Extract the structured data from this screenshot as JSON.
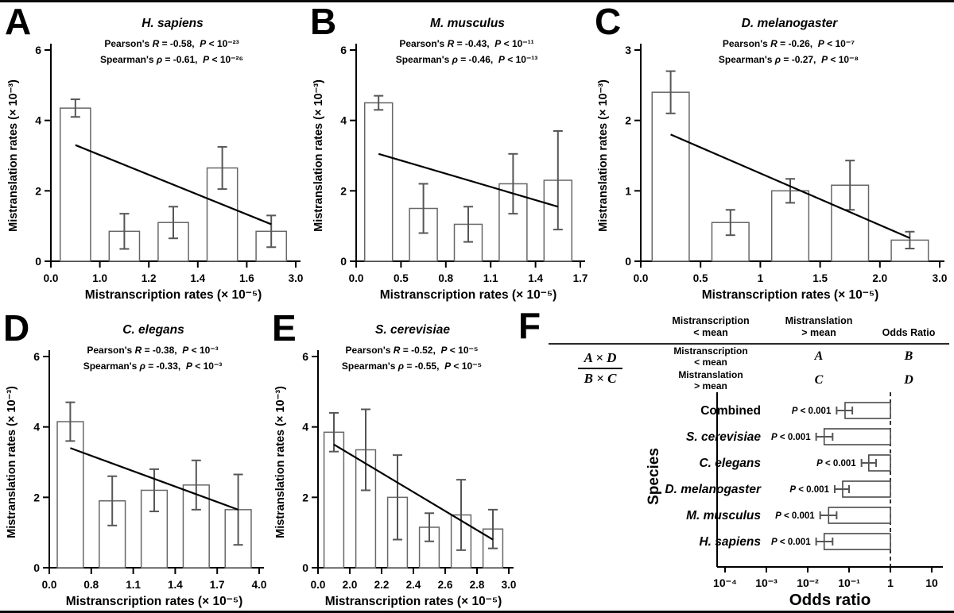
{
  "chart_data": [
    {
      "id": "A",
      "type": "bar",
      "title": "H. sapiens",
      "xlabel": "Mistranscription rates (× 10⁻⁵)",
      "ylabel": "Mistranslation rates (× 10⁻³)",
      "x_tick_labels": [
        "0.0",
        "1.0",
        "1.2",
        "1.4",
        "1.6",
        "3.0"
      ],
      "y_tick_labels": [
        "0",
        "2",
        "4",
        "6"
      ],
      "ylim": [
        0,
        6
      ],
      "values": [
        4.35,
        0.85,
        1.1,
        2.65,
        0.85
      ],
      "errors": [
        0.25,
        0.5,
        0.45,
        0.6,
        0.45
      ],
      "trendline_y": [
        3.3,
        1.05
      ],
      "stats": {
        "pearson_prefix": "Pearson's",
        "pearson_sym": "R",
        "pearson_val": "-0.58",
        "p_sym": "P",
        "pearson_p": "10⁻²³",
        "spearman_prefix": "Spearman's",
        "spearman_sym": "ρ",
        "spearman_val": "-0.61",
        "spearman_p": "10⁻²⁶"
      }
    },
    {
      "id": "B",
      "type": "bar",
      "title": "M. musculus",
      "xlabel": "Mistranscription rates (× 10⁻⁵)",
      "ylabel": "Mistranslation rates (× 10⁻³)",
      "x_tick_labels": [
        "0.0",
        "0.5",
        "0.8",
        "1.1",
        "1.4",
        "1.7"
      ],
      "y_tick_labels": [
        "0",
        "2",
        "4",
        "6"
      ],
      "ylim": [
        0,
        6
      ],
      "values": [
        4.5,
        1.5,
        1.05,
        2.2,
        2.3
      ],
      "errors": [
        0.2,
        0.7,
        0.5,
        0.85,
        1.4
      ],
      "trendline_y": [
        3.05,
        1.55
      ],
      "stats": {
        "pearson_prefix": "Pearson's",
        "pearson_sym": "R",
        "pearson_val": "-0.43",
        "p_sym": "P",
        "pearson_p": "10⁻¹¹",
        "spearman_prefix": "Spearman's",
        "spearman_sym": "ρ",
        "spearman_val": "-0.46",
        "spearman_p": "10⁻¹³"
      }
    },
    {
      "id": "C",
      "type": "bar",
      "title": "D. melanogaster",
      "xlabel": "Mistranscription rates (× 10⁻⁵)",
      "ylabel": "Mistranslation rates (× 10⁻³)",
      "x_tick_labels": [
        "0.0",
        "0.5",
        "1",
        "1.5",
        "2.0",
        "3.0"
      ],
      "y_tick_labels": [
        "0",
        "1",
        "2",
        "3"
      ],
      "ylim": [
        0,
        3
      ],
      "values": [
        2.4,
        0.55,
        1.0,
        1.08,
        0.3
      ],
      "errors": [
        0.3,
        0.18,
        0.17,
        0.35,
        0.12
      ],
      "trendline_y": [
        1.8,
        0.33
      ],
      "stats": {
        "pearson_prefix": "Pearson's",
        "pearson_sym": "R",
        "pearson_val": "-0.26",
        "p_sym": "P",
        "pearson_p": "10⁻⁷",
        "spearman_prefix": "Spearman's",
        "spearman_sym": "ρ",
        "spearman_val": "-0.27",
        "spearman_p": "10⁻⁸"
      }
    },
    {
      "id": "D",
      "type": "bar",
      "title": "C. elegans",
      "xlabel": "Mistranscription rates (× 10⁻⁵)",
      "ylabel": "Mistranslation rates (× 10⁻³)",
      "x_tick_labels": [
        "0.0",
        "0.8",
        "1.1",
        "1.4",
        "1.7",
        "4.0"
      ],
      "y_tick_labels": [
        "0",
        "2",
        "4",
        "6"
      ],
      "ylim": [
        0,
        6
      ],
      "values": [
        4.15,
        1.9,
        2.2,
        2.35,
        1.65
      ],
      "errors": [
        0.55,
        0.7,
        0.6,
        0.7,
        1.0
      ],
      "trendline_y": [
        3.4,
        1.65
      ],
      "stats": {
        "pearson_prefix": "Pearson's",
        "pearson_sym": "R",
        "pearson_val": "-0.38",
        "p_sym": "P",
        "pearson_p": "10⁻³",
        "spearman_prefix": "Spearman's",
        "spearman_sym": "ρ",
        "spearman_val": "-0.33",
        "spearman_p": "10⁻³"
      }
    },
    {
      "id": "E",
      "type": "bar",
      "title": "S. cerevisiae",
      "xlabel": "Mistranscription rates (× 10⁻⁵)",
      "ylabel": "Mistranslation rates (× 10⁻³)",
      "x_tick_labels": [
        "0.0",
        "2.0",
        "2.2",
        "2.4",
        "2.6",
        "2.8",
        "3.0"
      ],
      "y_tick_labels": [
        "0",
        "2",
        "4",
        "6"
      ],
      "ylim": [
        0,
        6
      ],
      "values": [
        3.85,
        3.35,
        2.0,
        1.15,
        1.5,
        1.1
      ],
      "errors": [
        0.55,
        1.15,
        1.2,
        0.4,
        1.0,
        0.55
      ],
      "trendline_y": [
        3.5,
        0.8
      ],
      "stats": {
        "pearson_prefix": "Pearson's",
        "pearson_sym": "R",
        "pearson_val": "-0.52",
        "p_sym": "P",
        "pearson_p": "10⁻⁵",
        "spearman_prefix": "Spearman's",
        "spearman_sym": "ρ",
        "spearman_val": "-0.55",
        "spearman_p": "10⁻⁵"
      }
    },
    {
      "id": "F",
      "type": "bar",
      "orientation": "horizontal",
      "x_scale": "log",
      "xlabel": "Odds ratio",
      "ylabel": "Species",
      "x_tick_labels": [
        "10⁻⁴",
        "10⁻³",
        "10⁻²",
        "10⁻¹",
        "1",
        "10"
      ],
      "x_tick_values": [
        0.0001,
        0.001,
        0.01,
        0.1,
        1,
        10
      ],
      "reference_line": 1,
      "rows": [
        {
          "label": "Combined",
          "italic": false,
          "p_label": "P < 0.001",
          "odds_ratio": 0.08,
          "ci": [
            0.05,
            0.12
          ]
        },
        {
          "label": "S. cerevisiae",
          "italic": true,
          "p_label": "P < 0.001",
          "odds_ratio": 0.025,
          "ci": [
            0.016,
            0.04
          ]
        },
        {
          "label": "C. elegans",
          "italic": true,
          "p_label": "P < 0.001",
          "odds_ratio": 0.3,
          "ci": [
            0.2,
            0.45
          ]
        },
        {
          "label": "D. melanogaster",
          "italic": true,
          "p_label": "P < 0.001",
          "odds_ratio": 0.07,
          "ci": [
            0.045,
            0.1
          ]
        },
        {
          "label": "M. musculus",
          "italic": true,
          "p_label": "P < 0.001",
          "odds_ratio": 0.032,
          "ci": [
            0.02,
            0.05
          ]
        },
        {
          "label": "H. sapiens",
          "italic": true,
          "p_label": "P < 0.001",
          "odds_ratio": 0.025,
          "ci": [
            0.016,
            0.04
          ]
        }
      ]
    }
  ],
  "contingency_table": {
    "letter": "F",
    "col_headers": [
      "Mistranscription\n< mean",
      "Mistranslation\n> mean",
      "Odds Ratio"
    ],
    "row_headers": [
      "Mistranscription\n< mean",
      "Mistranslation\n> mean"
    ],
    "cells": [
      [
        "A",
        "B"
      ],
      [
        "C",
        "D"
      ]
    ],
    "formula": {
      "numerator": "A × D",
      "denominator": "B × C"
    }
  }
}
